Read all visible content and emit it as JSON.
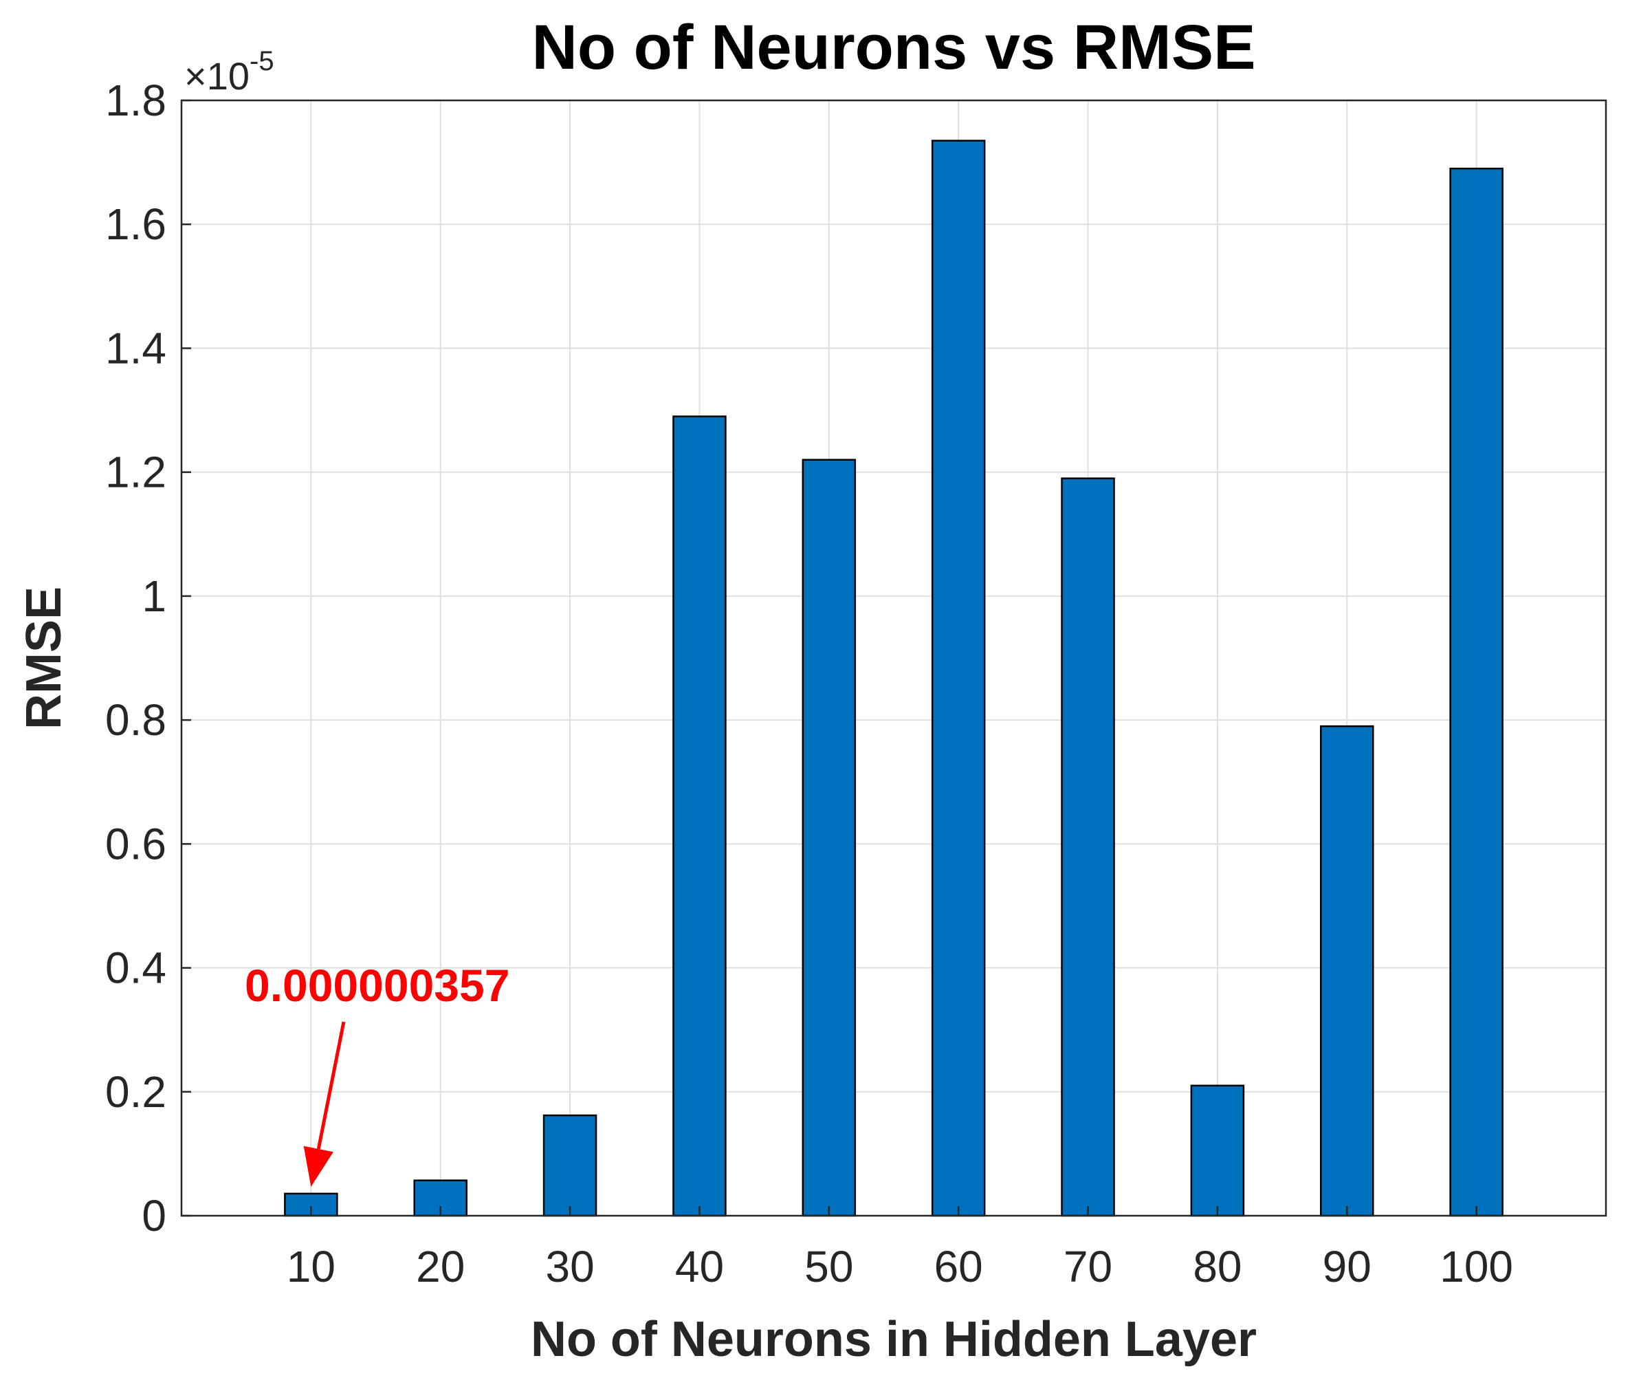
{
  "chart_data": {
    "type": "bar",
    "title": "No of Neurons vs RMSE",
    "xlabel": "No of Neurons in Hidden Layer",
    "ylabel": "RMSE",
    "y_exponent_base": "×10",
    "y_exponent_power": "-5",
    "categories": [
      "10",
      "20",
      "30",
      "40",
      "50",
      "60",
      "70",
      "80",
      "90",
      "100"
    ],
    "values": [
      0.0357,
      0.057,
      0.162,
      1.29,
      1.22,
      1.735,
      1.19,
      0.21,
      0.79,
      1.69
    ],
    "ylim": [
      0,
      1.8
    ],
    "y_ticks": [
      0,
      0.2,
      0.4,
      0.6,
      0.8,
      1,
      1.2,
      1.4,
      1.6,
      1.8
    ],
    "y_tick_labels": [
      "0",
      "0.2",
      "0.4",
      "0.6",
      "0.8",
      "1",
      "1.2",
      "1.4",
      "1.6",
      "1.8"
    ],
    "grid": true,
    "bar_color": "#0072BD",
    "annotation": {
      "text": "0.000000357",
      "target_category": "10",
      "color": "#FF0000"
    }
  }
}
